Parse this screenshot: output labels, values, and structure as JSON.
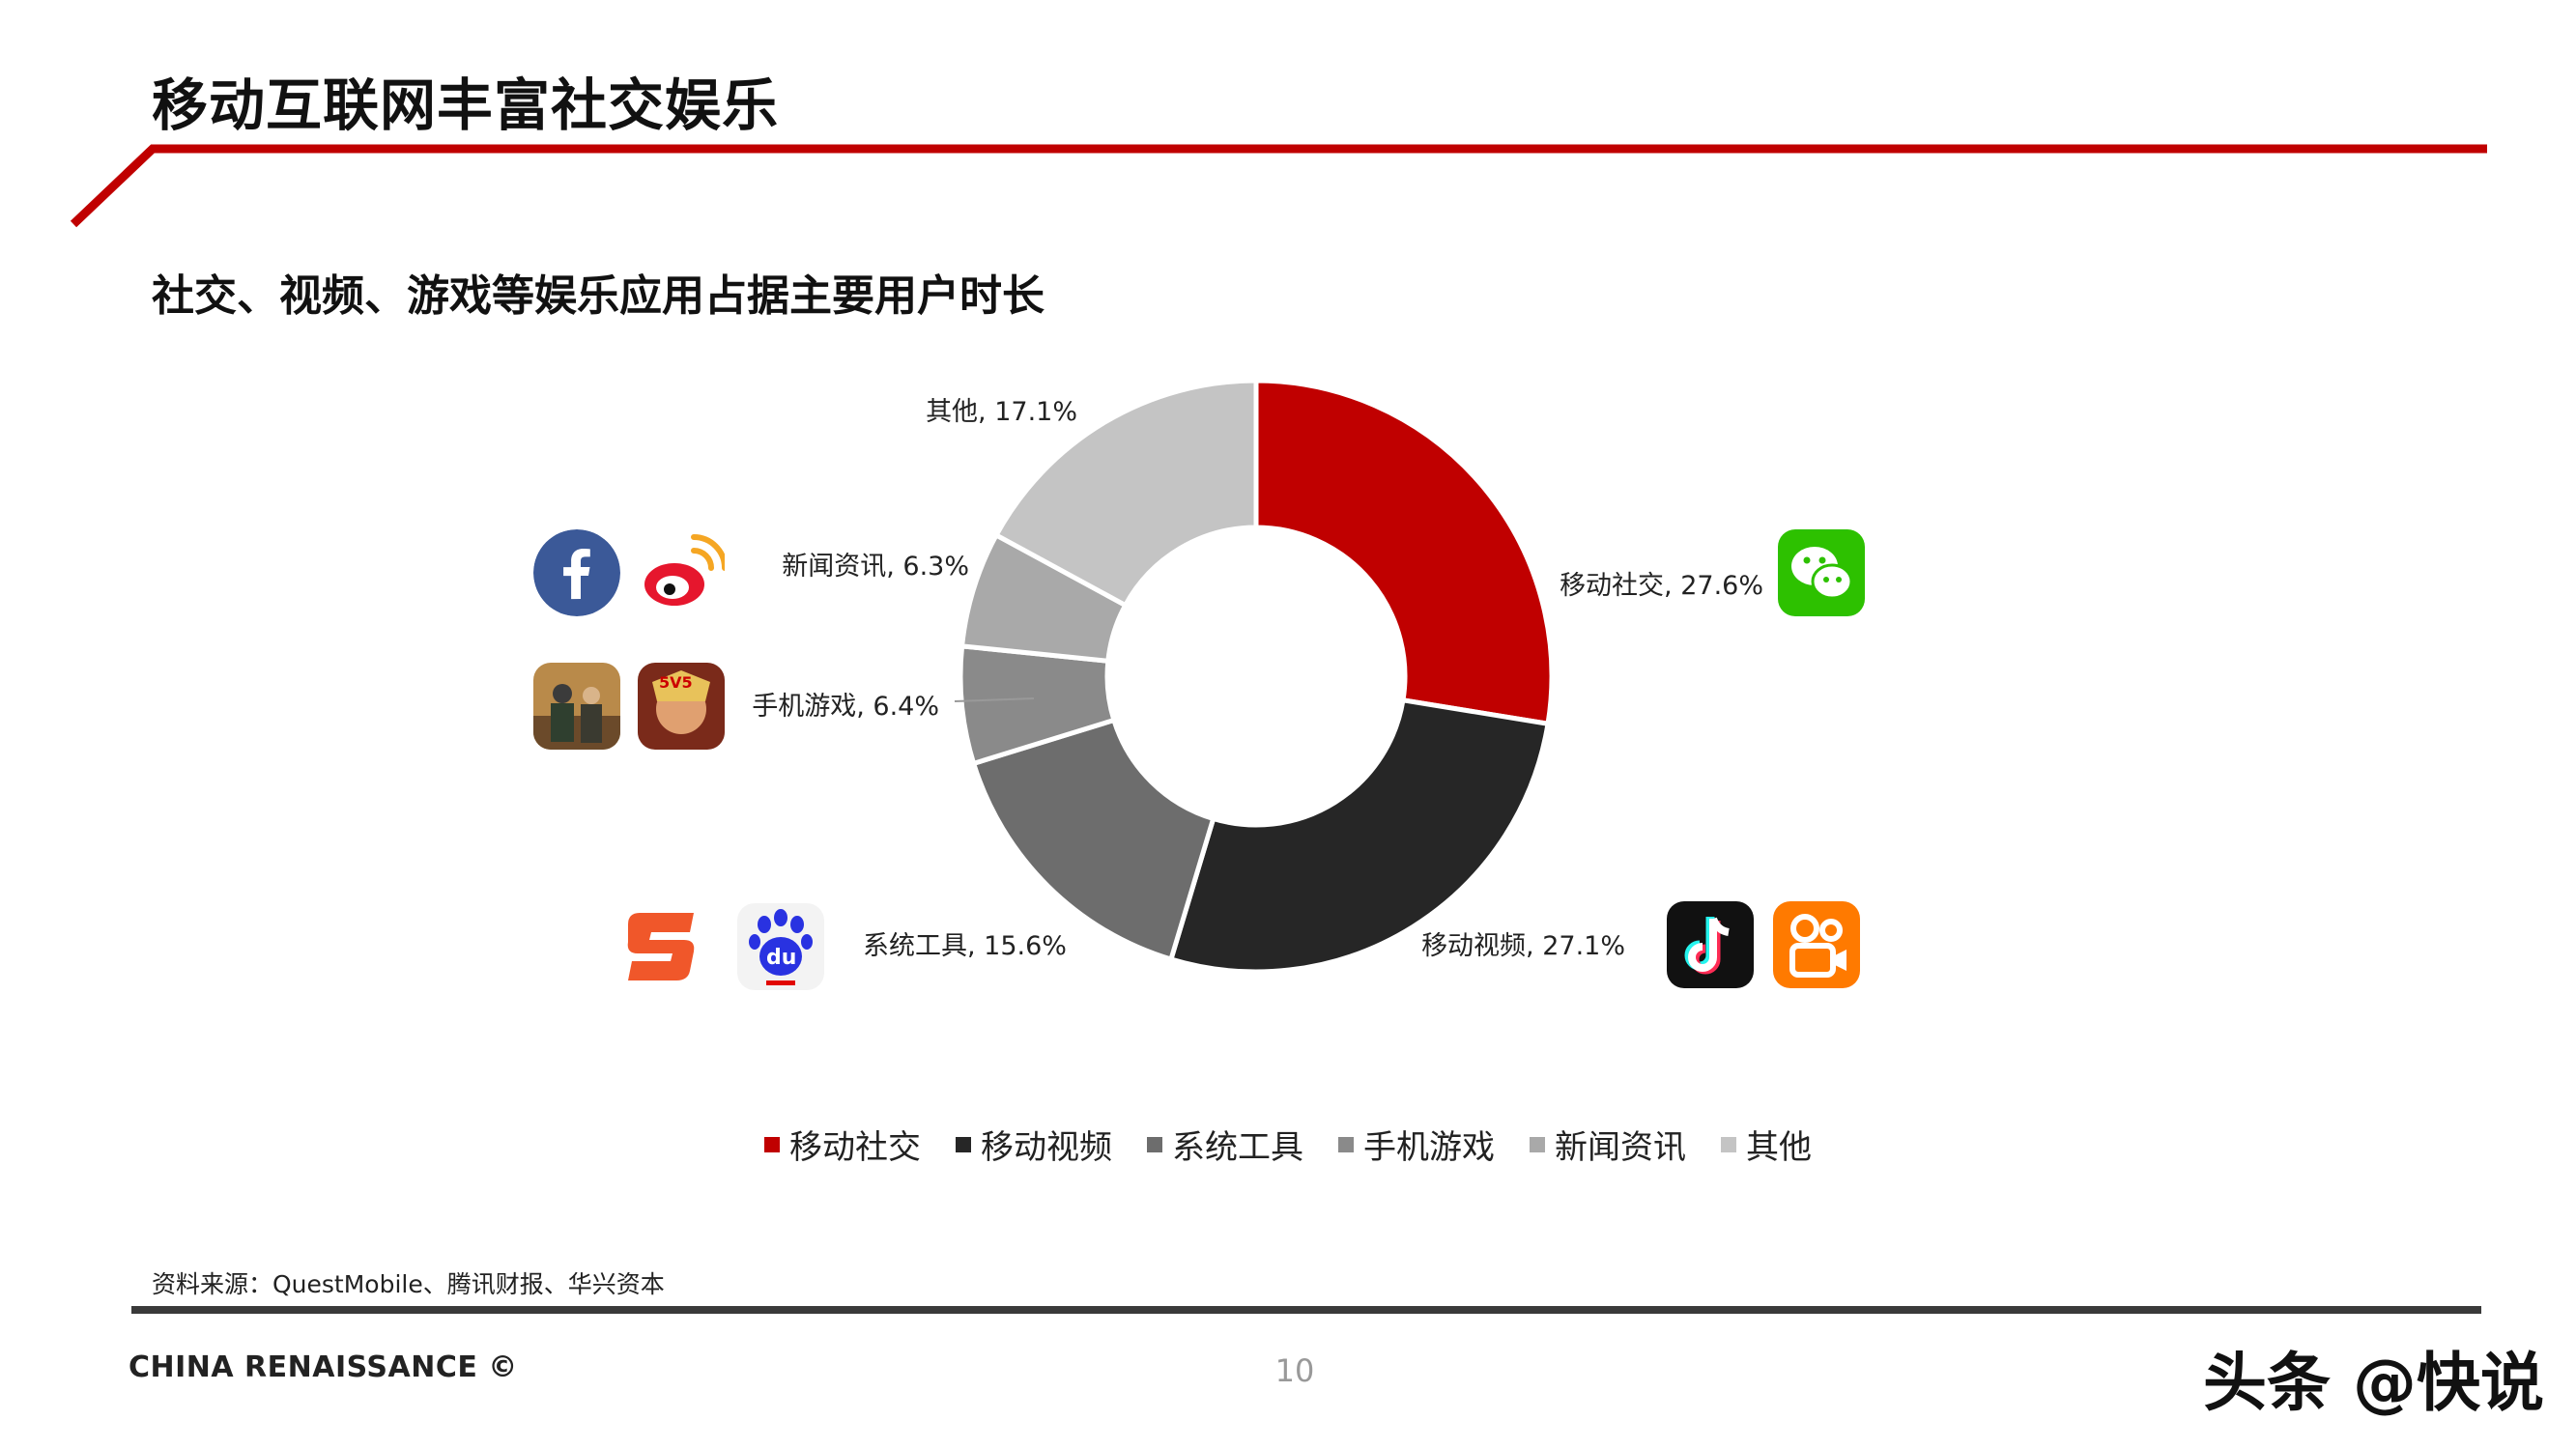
{
  "header": {
    "title": "移动互联网丰富社交娱乐",
    "subtitle": "社交、视频、游戏等娱乐应用占据主要用户时长"
  },
  "colors": {
    "accent_red": "#c00000",
    "dark": "#262626",
    "mid_gray": "#6d6d6d",
    "gray": "#8a8a8a",
    "light_gray": "#a9a9a9",
    "lighter_gray": "#c4c4c4"
  },
  "chart_data": {
    "type": "pie",
    "variant": "donut",
    "slices": [
      {
        "category": "移动社交",
        "value": 27.6,
        "label": "移动社交, 27.6%",
        "color": "#c00000"
      },
      {
        "category": "移动视频",
        "value": 27.1,
        "label": "移动视频, 27.1%",
        "color": "#262626"
      },
      {
        "category": "系统工具",
        "value": 15.6,
        "label": "系统工具, 15.6%",
        "color": "#6d6d6d"
      },
      {
        "category": "手机游戏",
        "value": 6.4,
        "label": "手机游戏, 6.4%",
        "color": "#8a8a8a"
      },
      {
        "category": "新闻资讯",
        "value": 6.3,
        "label": "新闻资讯, 6.3%",
        "color": "#a9a9a9"
      },
      {
        "category": "其他",
        "value": 17.1,
        "label": "其他, 17.1%",
        "color": "#c4c4c4"
      }
    ],
    "legend_position": "bottom"
  },
  "legend": {
    "items": [
      "移动社交",
      "移动视频",
      "系统工具",
      "手机游戏",
      "新闻资讯",
      "其他"
    ]
  },
  "icons": {
    "social_left": [
      "facebook-icon",
      "weibo-icon"
    ],
    "games": [
      "pubg-icon",
      "honor-of-kings-icon"
    ],
    "tools": [
      "sogou-icon",
      "baidu-icon"
    ],
    "social_right": [
      "wechat-icon"
    ],
    "video": [
      "douyin-icon",
      "kuaishou-icon"
    ]
  },
  "footer": {
    "source": "资料来源：QuestMobile、腾讯财报、华兴资本",
    "brand": "CHINA RENAISSANCE ©",
    "page_number": "10",
    "watermark": "头条 @快说"
  }
}
